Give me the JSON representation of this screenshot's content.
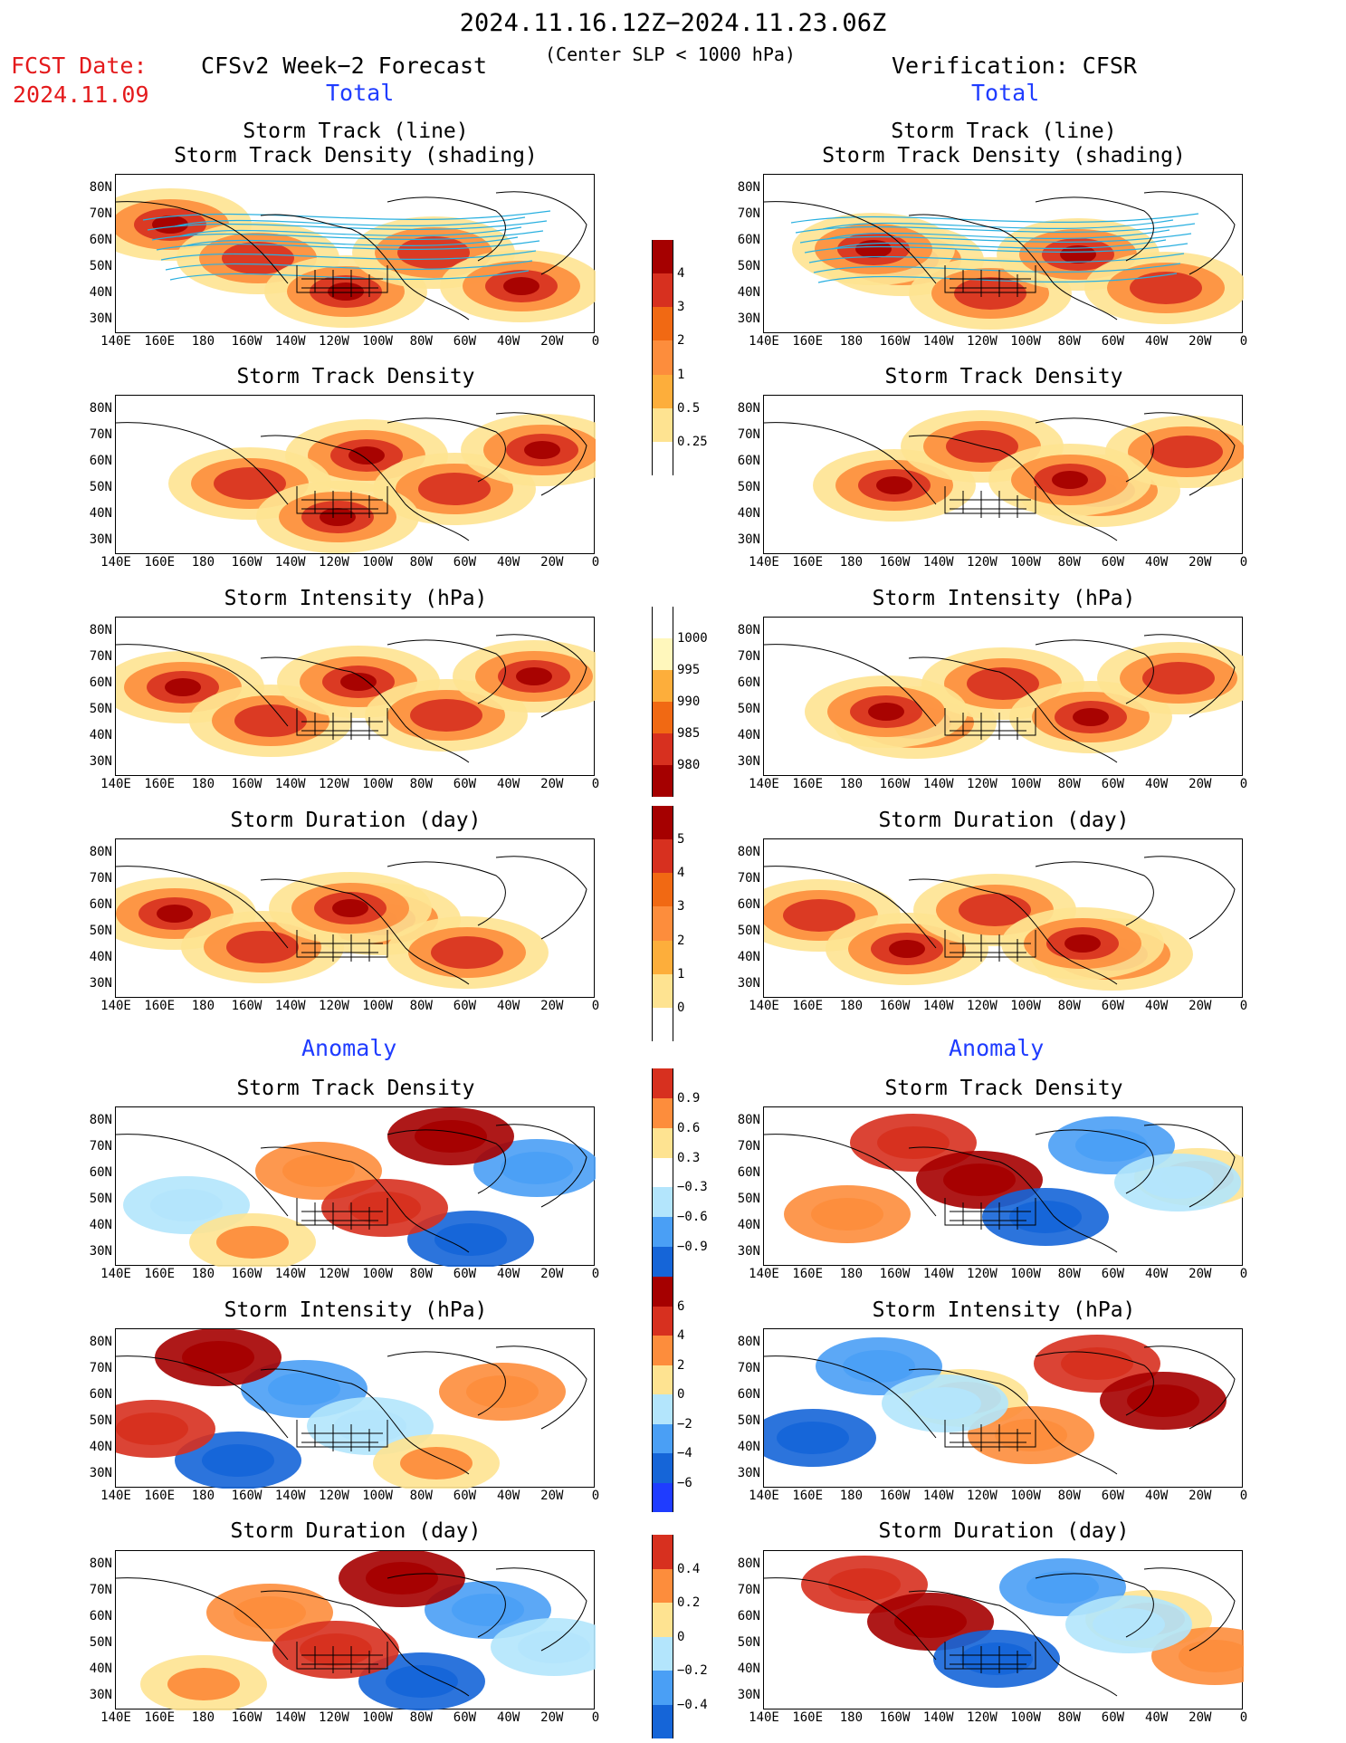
{
  "header": {
    "period": "2024.11.16.12Z−2024.11.23.06Z",
    "condition": "(Center SLP < 1000 hPa)",
    "fcst_label": "FCST Date:",
    "fcst_date": "2024.11.09",
    "forecast_title": "CFSv2 Week−2 Forecast",
    "verification_title": "Verification: CFSR",
    "total_label": "Total",
    "anomaly_label": "Anomaly"
  },
  "panel_titles": {
    "track_line": "Storm Track (line)",
    "track_density_shading": "Storm Track Density (shading)",
    "track_density": "Storm Track Density",
    "intensity": "Storm Intensity (hPa)",
    "duration": "Storm Duration (day)"
  },
  "axes": {
    "lat_labels": [
      "80N",
      "70N",
      "60N",
      "50N",
      "40N",
      "30N"
    ],
    "lon_labels": [
      "140E",
      "160E",
      "180",
      "160W",
      "140W",
      "120W",
      "100W",
      "80W",
      "60W",
      "40W",
      "20W",
      "0"
    ]
  },
  "colorbars": {
    "density_total": [
      "4",
      "3",
      "2",
      "1",
      "0.5",
      "0.25"
    ],
    "intensity_total": [
      "1000",
      "995",
      "990",
      "985",
      "980"
    ],
    "duration_total": [
      "5",
      "4",
      "3",
      "2",
      "1",
      "0"
    ],
    "density_anom": [
      "0.9",
      "0.6",
      "0.3",
      "−0.3",
      "−0.6",
      "−0.9"
    ],
    "intensity_anom": [
      "6",
      "4",
      "2",
      "0",
      "−2",
      "−4",
      "−6"
    ],
    "duration_anom": [
      "0.4",
      "0.2",
      "0",
      "−0.2",
      "−0.4"
    ]
  },
  "colors": {
    "dark_red": "#a50000",
    "red": "#d7301f",
    "orange_red": "#f16913",
    "orange": "#fd8d3c",
    "light_orange": "#fdae3b",
    "yellow": "#fee391",
    "pale_yellow": "#fff7bc",
    "light_blue": "#b3e5fc",
    "mid_blue": "#4a9ff5",
    "blue": "#1565d8",
    "track_line": "#2ab0e0"
  }
}
